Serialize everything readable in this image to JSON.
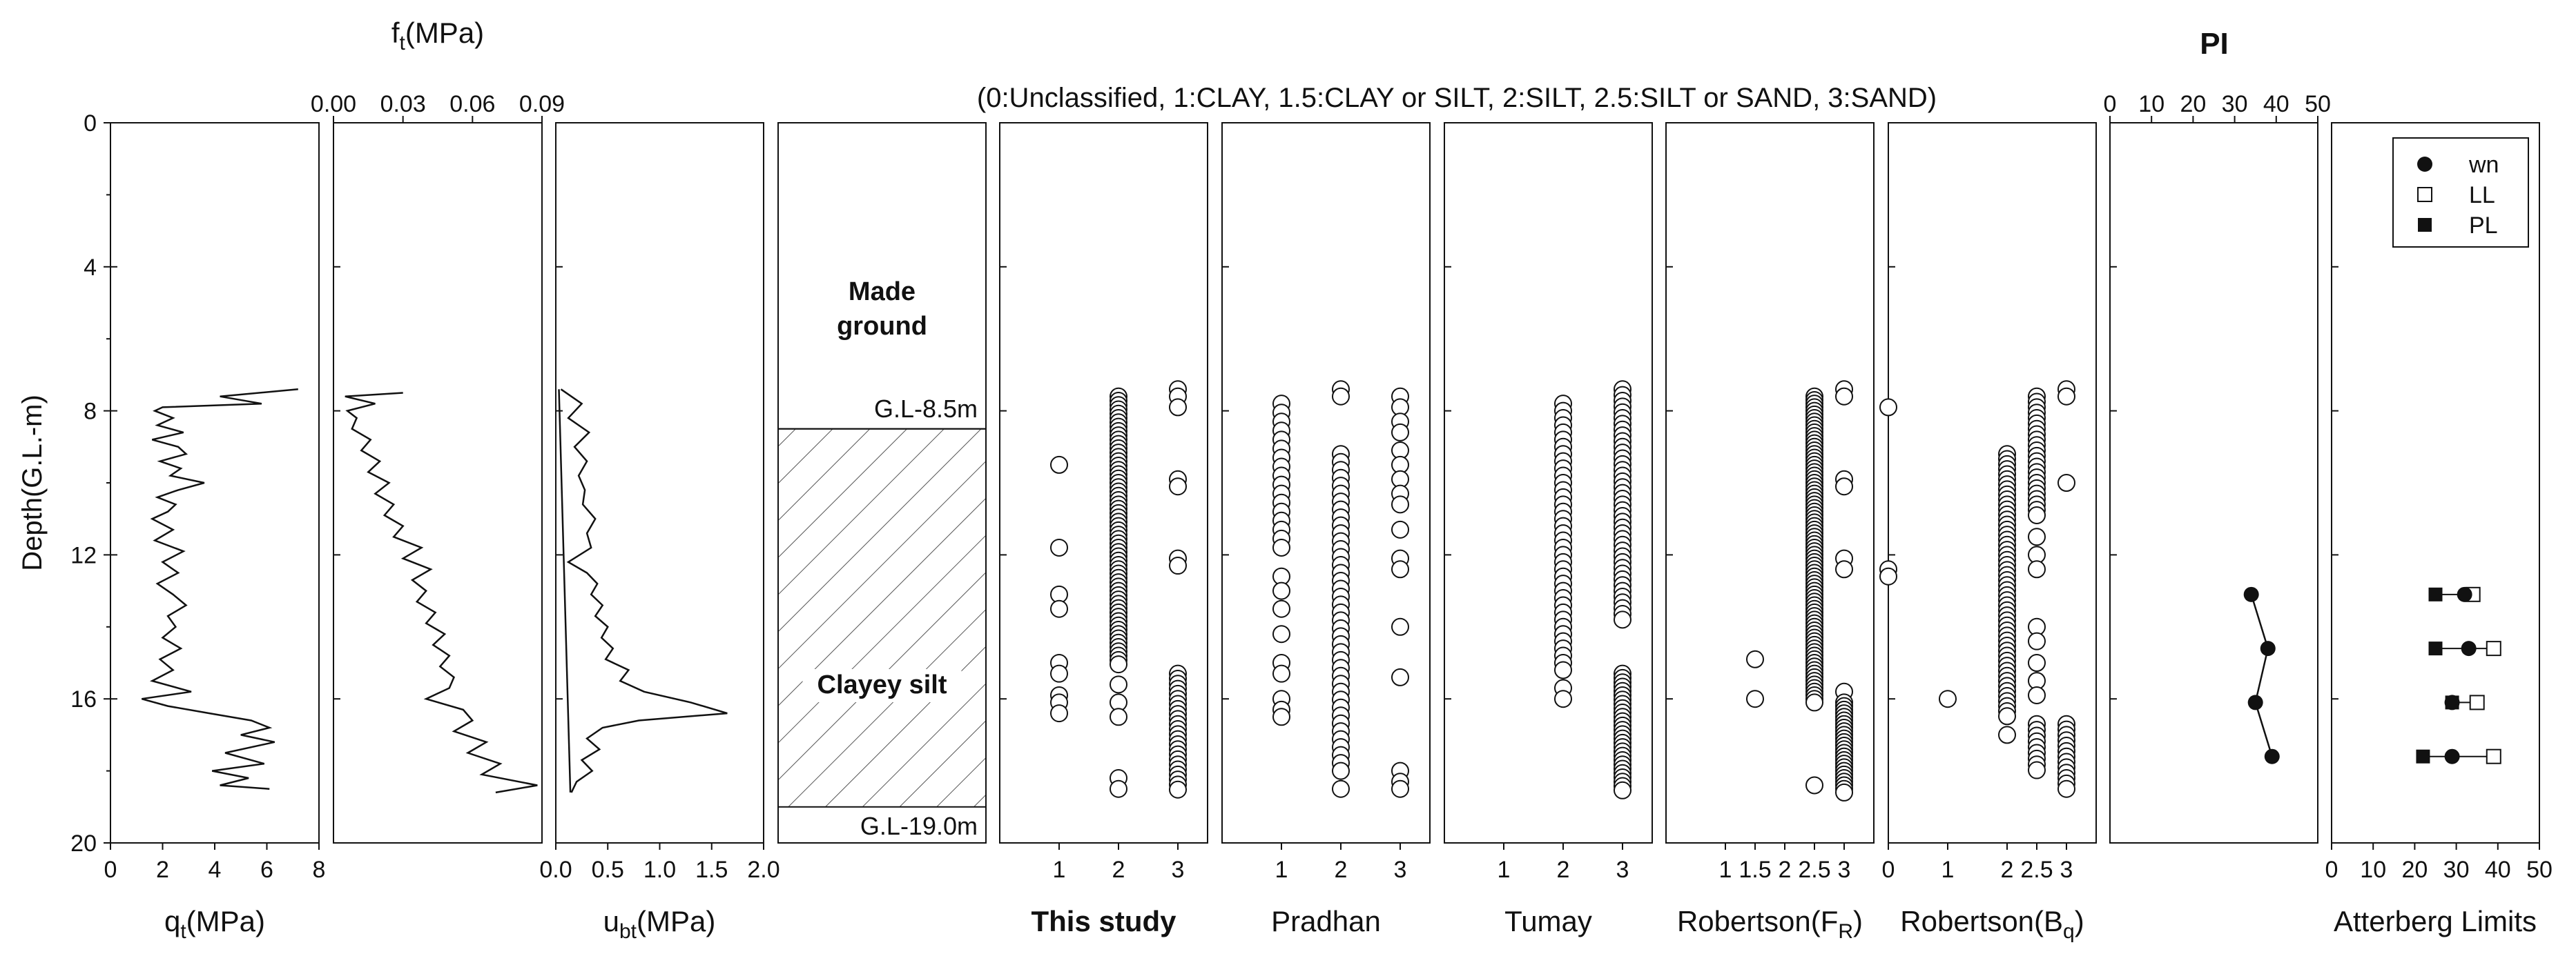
{
  "figure": {
    "depth_axis_label": "Depth(G.L.-m)",
    "classification_legend": "(0:Unclassified, 1:CLAY, 1.5:CLAY or SILT, 2:SILT, 2.5:SILT or SAND, 3:SAND)",
    "depth_ticks": [
      "0",
      "4",
      "8",
      "12",
      "16",
      "20"
    ]
  },
  "colors": {
    "ink": "#111111",
    "hatch": "#555555",
    "marker_fill": "#ffffff"
  },
  "chart_data": [
    {
      "id": "qt",
      "type": "line",
      "xlabel_main": "q",
      "xlabel_sub": "t",
      "xlabel_unit": "(MPa)",
      "xlim": [
        0,
        8
      ],
      "ylim": [
        0,
        20
      ],
      "xticks": [
        "0",
        "2",
        "4",
        "6",
        "8"
      ],
      "series": [
        {
          "name": "qt",
          "depth": [
            7.4,
            7.6,
            7.8,
            7.9,
            8.0,
            8.2,
            8.4,
            8.6,
            8.8,
            9.0,
            9.2,
            9.4,
            9.6,
            9.8,
            10.0,
            10.2,
            10.4,
            10.6,
            10.8,
            11.0,
            11.3,
            11.6,
            11.9,
            12.2,
            12.5,
            12.8,
            13.1,
            13.4,
            13.7,
            14.0,
            14.3,
            14.6,
            14.9,
            15.2,
            15.5,
            15.8,
            16.0,
            16.2,
            16.4,
            16.6,
            16.8,
            17.0,
            17.2,
            17.5,
            17.8,
            18.0,
            18.2,
            18.4,
            18.5
          ],
          "value": [
            7.2,
            4.2,
            5.8,
            2.0,
            1.7,
            2.4,
            1.8,
            2.8,
            1.6,
            2.6,
            2.9,
            1.9,
            2.7,
            2.3,
            3.6,
            2.6,
            1.8,
            2.5,
            2.2,
            1.6,
            2.4,
            1.7,
            2.8,
            2.0,
            2.6,
            1.8,
            2.4,
            2.9,
            2.2,
            2.5,
            2.0,
            2.7,
            1.9,
            2.4,
            1.6,
            3.1,
            1.2,
            2.2,
            3.8,
            5.4,
            6.1,
            5.0,
            6.3,
            4.4,
            5.9,
            3.9,
            5.3,
            4.2,
            6.1
          ]
        }
      ]
    },
    {
      "id": "ft",
      "type": "line",
      "xlabel_main": "f",
      "xlabel_sub": "t",
      "xlabel_unit": "(MPa)",
      "xlim": [
        0,
        0.09
      ],
      "ylim": [
        0,
        20
      ],
      "xticks": [
        "0.00",
        "0.03",
        "0.06",
        "0.09"
      ],
      "series": [
        {
          "name": "ft",
          "depth": [
            7.5,
            7.6,
            7.8,
            8.0,
            8.2,
            8.5,
            8.8,
            9.1,
            9.4,
            9.7,
            10.0,
            10.3,
            10.6,
            10.9,
            11.2,
            11.5,
            11.8,
            12.1,
            12.4,
            12.7,
            13.0,
            13.3,
            13.6,
            13.9,
            14.2,
            14.5,
            14.8,
            15.1,
            15.4,
            15.7,
            16.0,
            16.3,
            16.6,
            16.9,
            17.2,
            17.5,
            17.8,
            18.1,
            18.4,
            18.6
          ],
          "value": [
            0.03,
            0.005,
            0.018,
            0.006,
            0.01,
            0.008,
            0.016,
            0.012,
            0.02,
            0.015,
            0.024,
            0.018,
            0.026,
            0.022,
            0.03,
            0.026,
            0.038,
            0.03,
            0.042,
            0.034,
            0.04,
            0.036,
            0.044,
            0.04,
            0.048,
            0.043,
            0.05,
            0.046,
            0.052,
            0.05,
            0.04,
            0.056,
            0.06,
            0.052,
            0.066,
            0.058,
            0.072,
            0.064,
            0.088,
            0.07
          ]
        }
      ]
    },
    {
      "id": "ubt",
      "type": "line",
      "xlabel_main": "u",
      "xlabel_sub": "bt",
      "xlabel_unit": "(MPa)",
      "xlim": [
        0,
        2.0
      ],
      "ylim": [
        0,
        20
      ],
      "xticks": [
        "0.0",
        "0.5",
        "1.0",
        "1.5",
        "2.0"
      ],
      "series": [
        {
          "name": "ubt",
          "depth": [
            7.4,
            7.8,
            8.2,
            8.6,
            9.0,
            9.4,
            9.8,
            10.2,
            10.6,
            11.0,
            11.4,
            11.8,
            12.2,
            12.5,
            12.8,
            13.1,
            13.4,
            13.7,
            14.0,
            14.3,
            14.6,
            14.9,
            15.2,
            15.5,
            15.8,
            16.1,
            16.4,
            16.6,
            16.8,
            17.1,
            17.4,
            17.7,
            18.0,
            18.3,
            18.6
          ],
          "value": [
            0.05,
            0.25,
            0.12,
            0.32,
            0.18,
            0.3,
            0.22,
            0.28,
            0.26,
            0.38,
            0.3,
            0.34,
            0.12,
            0.3,
            0.4,
            0.34,
            0.45,
            0.38,
            0.5,
            0.44,
            0.55,
            0.48,
            0.7,
            0.62,
            0.85,
            1.3,
            1.65,
            0.8,
            0.45,
            0.3,
            0.42,
            0.25,
            0.35,
            0.2,
            0.15
          ]
        },
        {
          "name": "hydrostatic",
          "depth": [
            7.4,
            18.6
          ],
          "value": [
            0.03,
            0.14
          ]
        }
      ]
    },
    {
      "id": "strata",
      "type": "column",
      "layers": [
        {
          "label": "Made ground",
          "top": 0,
          "bottom": 8.5,
          "pattern": "none"
        },
        {
          "label": "Clayey silt",
          "top": 8.5,
          "bottom": 19.0,
          "pattern": "hatch"
        }
      ],
      "label_lines": [
        "Made",
        "ground"
      ],
      "label2": "Clayey silt",
      "marker_top": "G.L-8.5m",
      "marker_bottom": "G.L-19.0m"
    },
    {
      "id": "this_study",
      "type": "scatter",
      "title": "This study",
      "title_bold": true,
      "xlim": [
        0,
        3.5
      ],
      "xticks": [
        1,
        2,
        3
      ],
      "points": [
        {
          "x": 1,
          "depths": [
            9.5,
            11.8,
            13.1,
            13.5,
            15.0,
            15.3,
            15.9,
            16.1,
            16.4
          ]
        },
        {
          "x": 2,
          "range": [
            7.6,
            15.1
          ],
          "step": 0.12,
          "extra": [
            15.6,
            16.1,
            16.5,
            18.2,
            18.5
          ]
        },
        {
          "x": 3,
          "depths": [
            7.4,
            7.6,
            7.9,
            9.9,
            10.1,
            12.1,
            12.3
          ],
          "range": [
            15.3,
            18.6
          ],
          "step": 0.14
        }
      ]
    },
    {
      "id": "pradhan",
      "type": "scatter",
      "title": "Pradhan",
      "xlim": [
        0,
        3.5
      ],
      "xticks": [
        1,
        2,
        3
      ],
      "points": [
        {
          "x": 1,
          "range": [
            7.8,
            12.0
          ],
          "step": 0.25,
          "depths": [
            12.6,
            13.0,
            13.5,
            14.2,
            15.0,
            15.3,
            16.0,
            16.3,
            16.5
          ]
        },
        {
          "x": 2,
          "depths": [
            7.4,
            7.6
          ],
          "range": [
            9.2,
            18.0
          ],
          "step": 0.22,
          "extra": [
            18.5
          ]
        },
        {
          "x": 3,
          "depths": [
            7.6,
            7.9,
            8.3,
            8.6,
            9.1,
            9.5,
            9.9,
            10.3,
            10.6,
            11.3,
            12.1,
            12.4,
            14.0,
            15.4,
            18.0,
            18.3,
            18.5
          ]
        }
      ]
    },
    {
      "id": "tumay",
      "type": "scatter",
      "title": "Tumay",
      "xlim": [
        0,
        3.5
      ],
      "xticks": [
        1,
        2,
        3
      ],
      "points": [
        {
          "x": 2,
          "range": [
            7.8,
            15.3
          ],
          "step": 0.2,
          "depths": [
            15.7,
            16.0
          ]
        },
        {
          "x": 3,
          "range": [
            7.4,
            13.8
          ],
          "step": 0.16,
          "range2": [
            15.3,
            18.6
          ],
          "step2": 0.12
        }
      ]
    },
    {
      "id": "robertson_fr",
      "type": "scatter",
      "title_main": "Robertson(F",
      "title_sub": "R",
      "title_end": ")",
      "xlim": [
        0,
        3.5
      ],
      "xticks": [
        1,
        1.5,
        2,
        2.5,
        3
      ],
      "xticklabels": [
        "1",
        "1.5",
        "2",
        "2.5",
        "3"
      ],
      "points": [
        {
          "x": 1.5,
          "depths": [
            14.9,
            16.0
          ]
        },
        {
          "x": 2.5,
          "range": [
            7.6,
            16.1
          ],
          "step": 0.1,
          "extra": [
            18.4
          ]
        },
        {
          "x": 3,
          "depths": [
            7.4,
            7.6,
            9.9,
            10.1,
            12.1,
            12.4,
            15.8
          ],
          "range": [
            16.1,
            18.6
          ],
          "step": 0.1
        }
      ]
    },
    {
      "id": "robertson_bq",
      "type": "scatter",
      "title_main": "Robertson(B",
      "title_sub": "q",
      "title_end": ")",
      "xlim": [
        0,
        3.5
      ],
      "xticks": [
        0,
        1,
        2,
        2.5,
        3
      ],
      "xticklabels": [
        "0",
        "1",
        "2",
        "2.5",
        "3"
      ],
      "points": [
        {
          "x": 0,
          "depths": [
            7.9,
            12.4,
            12.6
          ]
        },
        {
          "x": 1,
          "depths": [
            16.0
          ]
        },
        {
          "x": 2,
          "range": [
            9.2,
            16.6
          ],
          "step": 0.14,
          "extra": [
            17.0
          ]
        },
        {
          "x": 2.5,
          "range": [
            7.6,
            11.0
          ],
          "step": 0.15,
          "depths": [
            11.5,
            12.0,
            12.4,
            14.0,
            14.4,
            15.0,
            15.5,
            15.9
          ],
          "range2": [
            16.7,
            18.0
          ],
          "step2": 0.16
        },
        {
          "x": 3,
          "depths": [
            7.4,
            7.6,
            10.0
          ],
          "range": [
            16.7,
            18.6
          ],
          "step": 0.15
        }
      ]
    },
    {
      "id": "pi",
      "type": "line",
      "title": "PI",
      "xlim": [
        0,
        50
      ],
      "xticks": [
        "0",
        "10",
        "20",
        "30",
        "40",
        "50"
      ],
      "series": [
        {
          "name": "PI",
          "depth": [
            13.1,
            14.6,
            16.1,
            17.6
          ],
          "value": [
            34,
            38,
            35,
            39
          ]
        }
      ]
    },
    {
      "id": "atterberg",
      "type": "scatter",
      "title": "Atterberg Limits",
      "xlim": [
        0,
        50
      ],
      "xticks": [
        "0",
        "10",
        "20",
        "30",
        "40",
        "50"
      ],
      "legend": [
        {
          "key": "wn",
          "label": "wn"
        },
        {
          "key": "LL",
          "label": "LL"
        },
        {
          "key": "PL",
          "label": "PL"
        }
      ],
      "samples": [
        {
          "depth": 13.1,
          "wn": 32,
          "LL": 34,
          "PL": 25
        },
        {
          "depth": 14.6,
          "wn": 33,
          "LL": 39,
          "PL": 25
        },
        {
          "depth": 16.1,
          "wn": 29,
          "LL": 35,
          "PL": 29
        },
        {
          "depth": 17.6,
          "wn": 29,
          "LL": 39,
          "PL": 22
        }
      ]
    }
  ]
}
